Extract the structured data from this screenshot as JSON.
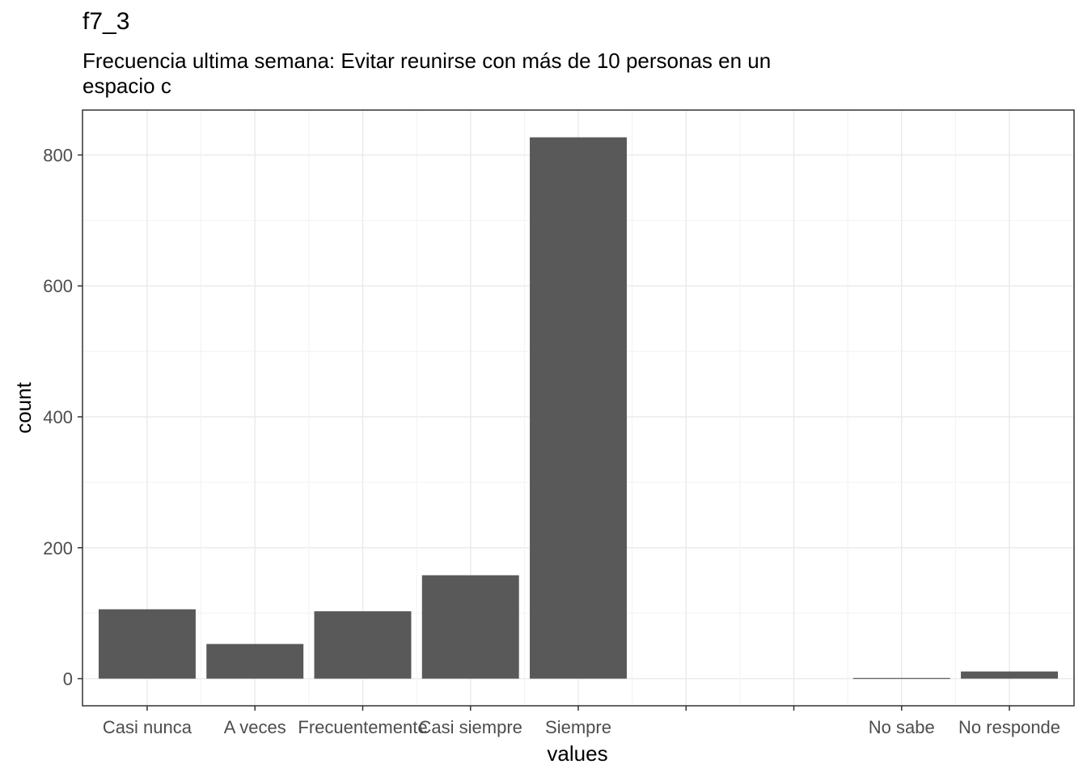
{
  "chart_data": {
    "type": "bar",
    "title": "f7_3",
    "subtitle_lines": [
      "Frecuencia ultima semana: Evitar reunirse con más de 10 personas en un",
      "espacio c"
    ],
    "xlabel": "values",
    "ylabel": "count",
    "categories": [
      "Casi nunca",
      "A veces",
      "Frecuentemente",
      "Casi siempre",
      "Siempre",
      "",
      "",
      "No sabe",
      "No responde"
    ],
    "values": [
      106,
      53,
      103,
      158,
      827,
      null,
      null,
      1,
      11
    ],
    "yticks": [
      0,
      200,
      400,
      600,
      800
    ],
    "ylim": [
      -41.4,
      868.6
    ],
    "grid": true,
    "bar_color": "#595959"
  }
}
